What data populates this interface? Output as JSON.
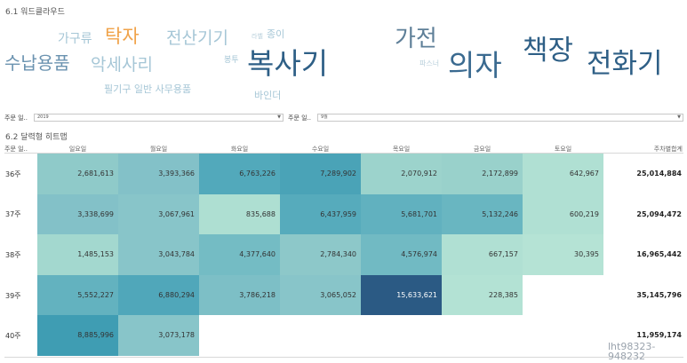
{
  "wordcloud": {
    "title": "6.1 워드클라우드",
    "words": [
      {
        "text": "가구류",
        "color": "#a5c6d6"
      },
      {
        "text": "탁자",
        "color": "#f0a34a"
      },
      {
        "text": "전산기기",
        "color": "#a5c6d6"
      },
      {
        "text": "라벨",
        "color": "#b8cfdb"
      },
      {
        "text": "종이",
        "color": "#a5c6d6"
      },
      {
        "text": "가전",
        "color": "#5e7f98"
      },
      {
        "text": "책장",
        "color": "#2e5f86"
      },
      {
        "text": "수납용품",
        "color": "#6b93b0"
      },
      {
        "text": "악세사리",
        "color": "#a5c6d6"
      },
      {
        "text": "봉투",
        "color": "#a5c6d6"
      },
      {
        "text": "복사기",
        "color": "#2e5f86"
      },
      {
        "text": "파스너",
        "color": "#b8cfdb"
      },
      {
        "text": "의자",
        "color": "#3a6a90"
      },
      {
        "text": "전화기",
        "color": "#2e5f86"
      },
      {
        "text": "필기구 일반 사무용품",
        "color": "#a5c6d6"
      },
      {
        "text": "바인더",
        "color": "#a5c6d6"
      }
    ]
  },
  "filters": [
    {
      "label": "주문 일..",
      "value": "2019"
    },
    {
      "label": "주문 일..",
      "value": "9월"
    }
  ],
  "heatmap": {
    "title": "6.2 달력형 히트맵",
    "corner_label": "주문 일..",
    "columns": [
      "일요일",
      "월요일",
      "화요일",
      "수요일",
      "목요일",
      "금요일",
      "토요일"
    ],
    "total_label": "주차별합계",
    "rows": [
      {
        "week": "36주",
        "cells": [
          {
            "v": "2,681,613",
            "bg": "#8fcac9"
          },
          {
            "v": "3,393,366",
            "bg": "#83c1c8"
          },
          {
            "v": "6,763,226",
            "bg": "#52a9bb"
          },
          {
            "v": "7,289,902",
            "bg": "#4aa3b7"
          },
          {
            "v": "2,070,912",
            "bg": "#9cd3cc"
          },
          {
            "v": "2,172,899",
            "bg": "#99d1cb"
          },
          {
            "v": "642,967",
            "bg": "#b0e0d3"
          }
        ],
        "total": "25,014,884"
      },
      {
        "week": "37주",
        "cells": [
          {
            "v": "3,338,699",
            "bg": "#83c1c8"
          },
          {
            "v": "3,067,961",
            "bg": "#88c5c9"
          },
          {
            "v": "835,688",
            "bg": "#aedfd2"
          },
          {
            "v": "6,437,959",
            "bg": "#56abbc"
          },
          {
            "v": "5,681,701",
            "bg": "#61b1bf"
          },
          {
            "v": "5,132,246",
            "bg": "#69b6c1"
          },
          {
            "v": "600,219",
            "bg": "#b0e0d3"
          }
        ],
        "total": "25,094,472"
      },
      {
        "week": "38주",
        "cells": [
          {
            "v": "1,485,153",
            "bg": "#a3d8cf"
          },
          {
            "v": "3,043,784",
            "bg": "#88c5c9"
          },
          {
            "v": "4,377,640",
            "bg": "#74bcc4"
          },
          {
            "v": "2,784,340",
            "bg": "#8dc8c9"
          },
          {
            "v": "4,576,974",
            "bg": "#71bac3"
          },
          {
            "v": "667,157",
            "bg": "#b0e0d3"
          },
          {
            "v": "30,395",
            "bg": "#b5e3d5"
          }
        ],
        "total": "16,965,442"
      },
      {
        "week": "39주",
        "cells": [
          {
            "v": "5,552,227",
            "bg": "#63b2bf"
          },
          {
            "v": "6,880,294",
            "bg": "#50a7ba"
          },
          {
            "v": "3,786,218",
            "bg": "#7dbfc6"
          },
          {
            "v": "3,065,052",
            "bg": "#88c5c9"
          },
          {
            "v": "15,633,621",
            "bg": "#2b5a84",
            "dark": true
          },
          {
            "v": "228,385",
            "bg": "#b3e2d4"
          },
          {
            "v": "",
            "bg": "#ffffff"
          }
        ],
        "total": "35,145,796"
      },
      {
        "week": "40주",
        "cells": [
          {
            "v": "8,885,996",
            "bg": "#3f9db3"
          },
          {
            "v": "3,073,178",
            "bg": "#88c5c9"
          },
          {
            "v": "",
            "bg": "#ffffff"
          },
          {
            "v": "",
            "bg": "#ffffff"
          },
          {
            "v": "",
            "bg": "#ffffff"
          },
          {
            "v": "",
            "bg": "#ffffff"
          },
          {
            "v": "",
            "bg": "#ffffff"
          }
        ],
        "total": "11,959,174"
      }
    ]
  },
  "watermark": {
    "line1": "lht98323-",
    "line2": "948232"
  }
}
